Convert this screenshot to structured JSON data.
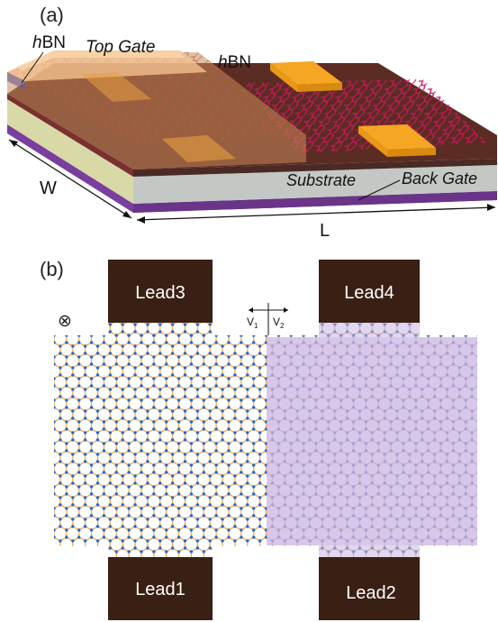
{
  "panel_a": {
    "label": "(a)",
    "top_hbn_label": "hBN",
    "top_gate_label": "Top Gate",
    "right_hbn_label": "hBN",
    "substrate_label": "Substrate",
    "back_gate_label": "Back Gate",
    "width_label": "W",
    "length_label": "L"
  },
  "panel_b": {
    "label": "(b)",
    "field_symbol": "⊗",
    "leads": [
      "Lead1",
      "Lead2",
      "Lead3",
      "Lead4"
    ],
    "v1_label": "V",
    "v1_sub": "1",
    "v2_label": "V",
    "v2_sub": "2"
  },
  "colors": {
    "lead_fill": "#3a1f14",
    "lattice_bond": "#f0a440",
    "lattice_atom": "#2a66c4",
    "gated_region": "#c9b6e4",
    "top_gate": "#f0a45a",
    "back_gate": "#7a3f9e",
    "substrate": "#c4c8c4",
    "hbn_dark": "#5b2c24",
    "lattice_a": "#d1145a"
  }
}
